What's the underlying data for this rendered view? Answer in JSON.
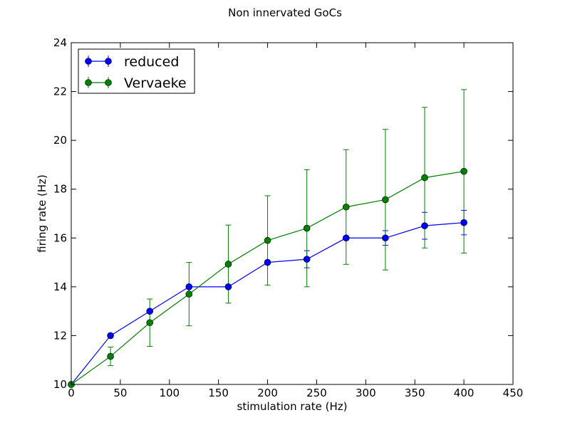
{
  "figure": {
    "title": "Non innervated GoCs"
  },
  "chart_data": {
    "type": "line",
    "title": "Non innervated GoCs",
    "xlabel": "stimulation rate (Hz)",
    "ylabel": "firing rate (Hz)",
    "xlim": [
      0,
      450
    ],
    "ylim": [
      10,
      24
    ],
    "xticks": [
      0,
      50,
      100,
      150,
      200,
      250,
      300,
      350,
      400,
      450
    ],
    "yticks": [
      10,
      12,
      14,
      16,
      18,
      20,
      22,
      24
    ],
    "grid": false,
    "legend": {
      "placement": "top-left",
      "entries": [
        "reduced",
        "Vervaeke"
      ]
    },
    "x": [
      0,
      40,
      80,
      120,
      160,
      200,
      240,
      280,
      320,
      360,
      400
    ],
    "series": [
      {
        "name": "reduced",
        "color": "#0000ff",
        "marker": "circle",
        "values": [
          10.0,
          12.0,
          13.0,
          14.0,
          14.0,
          15.0,
          15.13,
          16.0,
          16.0,
          16.5,
          16.63
        ],
        "errors": [
          0,
          0,
          0,
          0,
          0,
          0,
          0.35,
          0,
          0.3,
          0.55,
          0.5
        ]
      },
      {
        "name": "Vervaeke",
        "color": "#008000",
        "marker": "circle",
        "values": [
          10.0,
          11.15,
          12.53,
          13.7,
          14.93,
          15.9,
          16.4,
          17.27,
          17.57,
          18.47,
          18.73
        ],
        "errors": [
          0,
          0.38,
          0.97,
          1.3,
          1.6,
          1.83,
          2.4,
          2.35,
          2.88,
          2.88,
          3.35
        ]
      }
    ]
  }
}
